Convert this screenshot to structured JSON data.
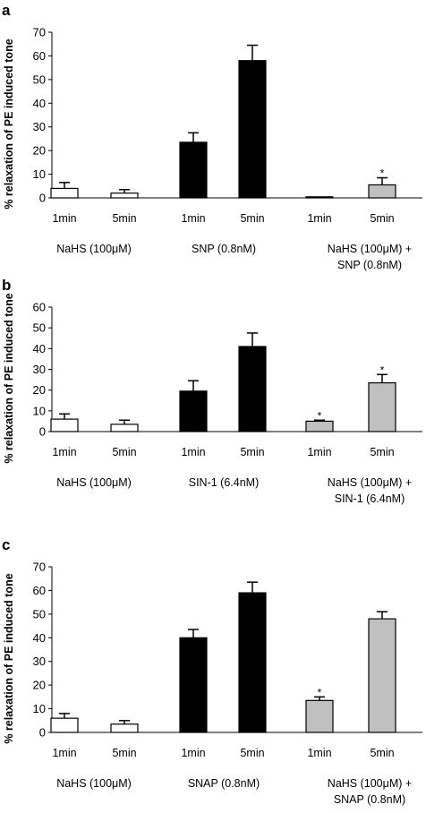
{
  "chart_data": [
    {
      "type": "bar",
      "panel_label": "a",
      "ylabel": "% relaxation of PE induced tone",
      "ylim": [
        0,
        70
      ],
      "yticks": [
        0,
        10,
        20,
        30,
        40,
        50,
        60,
        70
      ],
      "categories": [
        "1min",
        "5min",
        "1min",
        "5min",
        "1min",
        "5min"
      ],
      "groups": [
        {
          "lines": [
            "NaHS (100μM)"
          ]
        },
        {
          "lines": [
            "SNP (0.8nM)"
          ]
        },
        {
          "lines": [
            "NaHS (100μM) +",
            "SNP (0.8nM)"
          ]
        }
      ],
      "values": [
        4,
        2,
        23.5,
        58,
        0,
        5.5
      ],
      "errors": [
        2.5,
        1.5,
        4,
        6.5,
        0,
        3
      ],
      "fills": [
        "#ffffff",
        "#ffffff",
        "#000000",
        "#000000",
        "#c0c0c0",
        "#c0c0c0"
      ],
      "significance": [
        "",
        "",
        "",
        "",
        "",
        "*"
      ]
    },
    {
      "type": "bar",
      "panel_label": "b",
      "ylabel": "% relaxation of PE induced tone",
      "ylim": [
        0,
        60
      ],
      "yticks": [
        0,
        10,
        20,
        30,
        40,
        50,
        60
      ],
      "categories": [
        "1min",
        "5min",
        "1min",
        "5min",
        "1min",
        "5min"
      ],
      "groups": [
        {
          "lines": [
            "NaHS (100μM)"
          ]
        },
        {
          "lines": [
            "SIN-1 (6.4nM)"
          ]
        },
        {
          "lines": [
            "NaHS (100μM) +",
            "SIN-1 (6.4nM)"
          ]
        }
      ],
      "values": [
        6,
        3.5,
        19.5,
        41,
        5,
        23.5
      ],
      "errors": [
        2.5,
        2,
        5,
        6.5,
        0.5,
        4
      ],
      "fills": [
        "#ffffff",
        "#ffffff",
        "#000000",
        "#000000",
        "#c0c0c0",
        "#c0c0c0"
      ],
      "significance": [
        "",
        "",
        "",
        "",
        "*",
        "*"
      ]
    },
    {
      "type": "bar",
      "panel_label": "c",
      "ylabel": "% relaxation of PE induced tone",
      "ylim": [
        0,
        70
      ],
      "yticks": [
        0,
        10,
        20,
        30,
        40,
        50,
        60,
        70
      ],
      "categories": [
        "1min",
        "5min",
        "1min",
        "5min",
        "1min",
        "5min"
      ],
      "groups": [
        {
          "lines": [
            "NaHS (100μM)"
          ]
        },
        {
          "lines": [
            "SNAP (0.8nM)"
          ]
        },
        {
          "lines": [
            "NaHS (100μM) +",
            "SNAP (0.8nM)"
          ]
        }
      ],
      "values": [
        6,
        3.5,
        40,
        59,
        13.5,
        48
      ],
      "errors": [
        2,
        1.5,
        3.5,
        4.5,
        1.5,
        3
      ],
      "fills": [
        "#ffffff",
        "#ffffff",
        "#000000",
        "#000000",
        "#c0c0c0",
        "#c0c0c0"
      ],
      "significance": [
        "",
        "",
        "",
        "",
        "*",
        ""
      ]
    }
  ]
}
